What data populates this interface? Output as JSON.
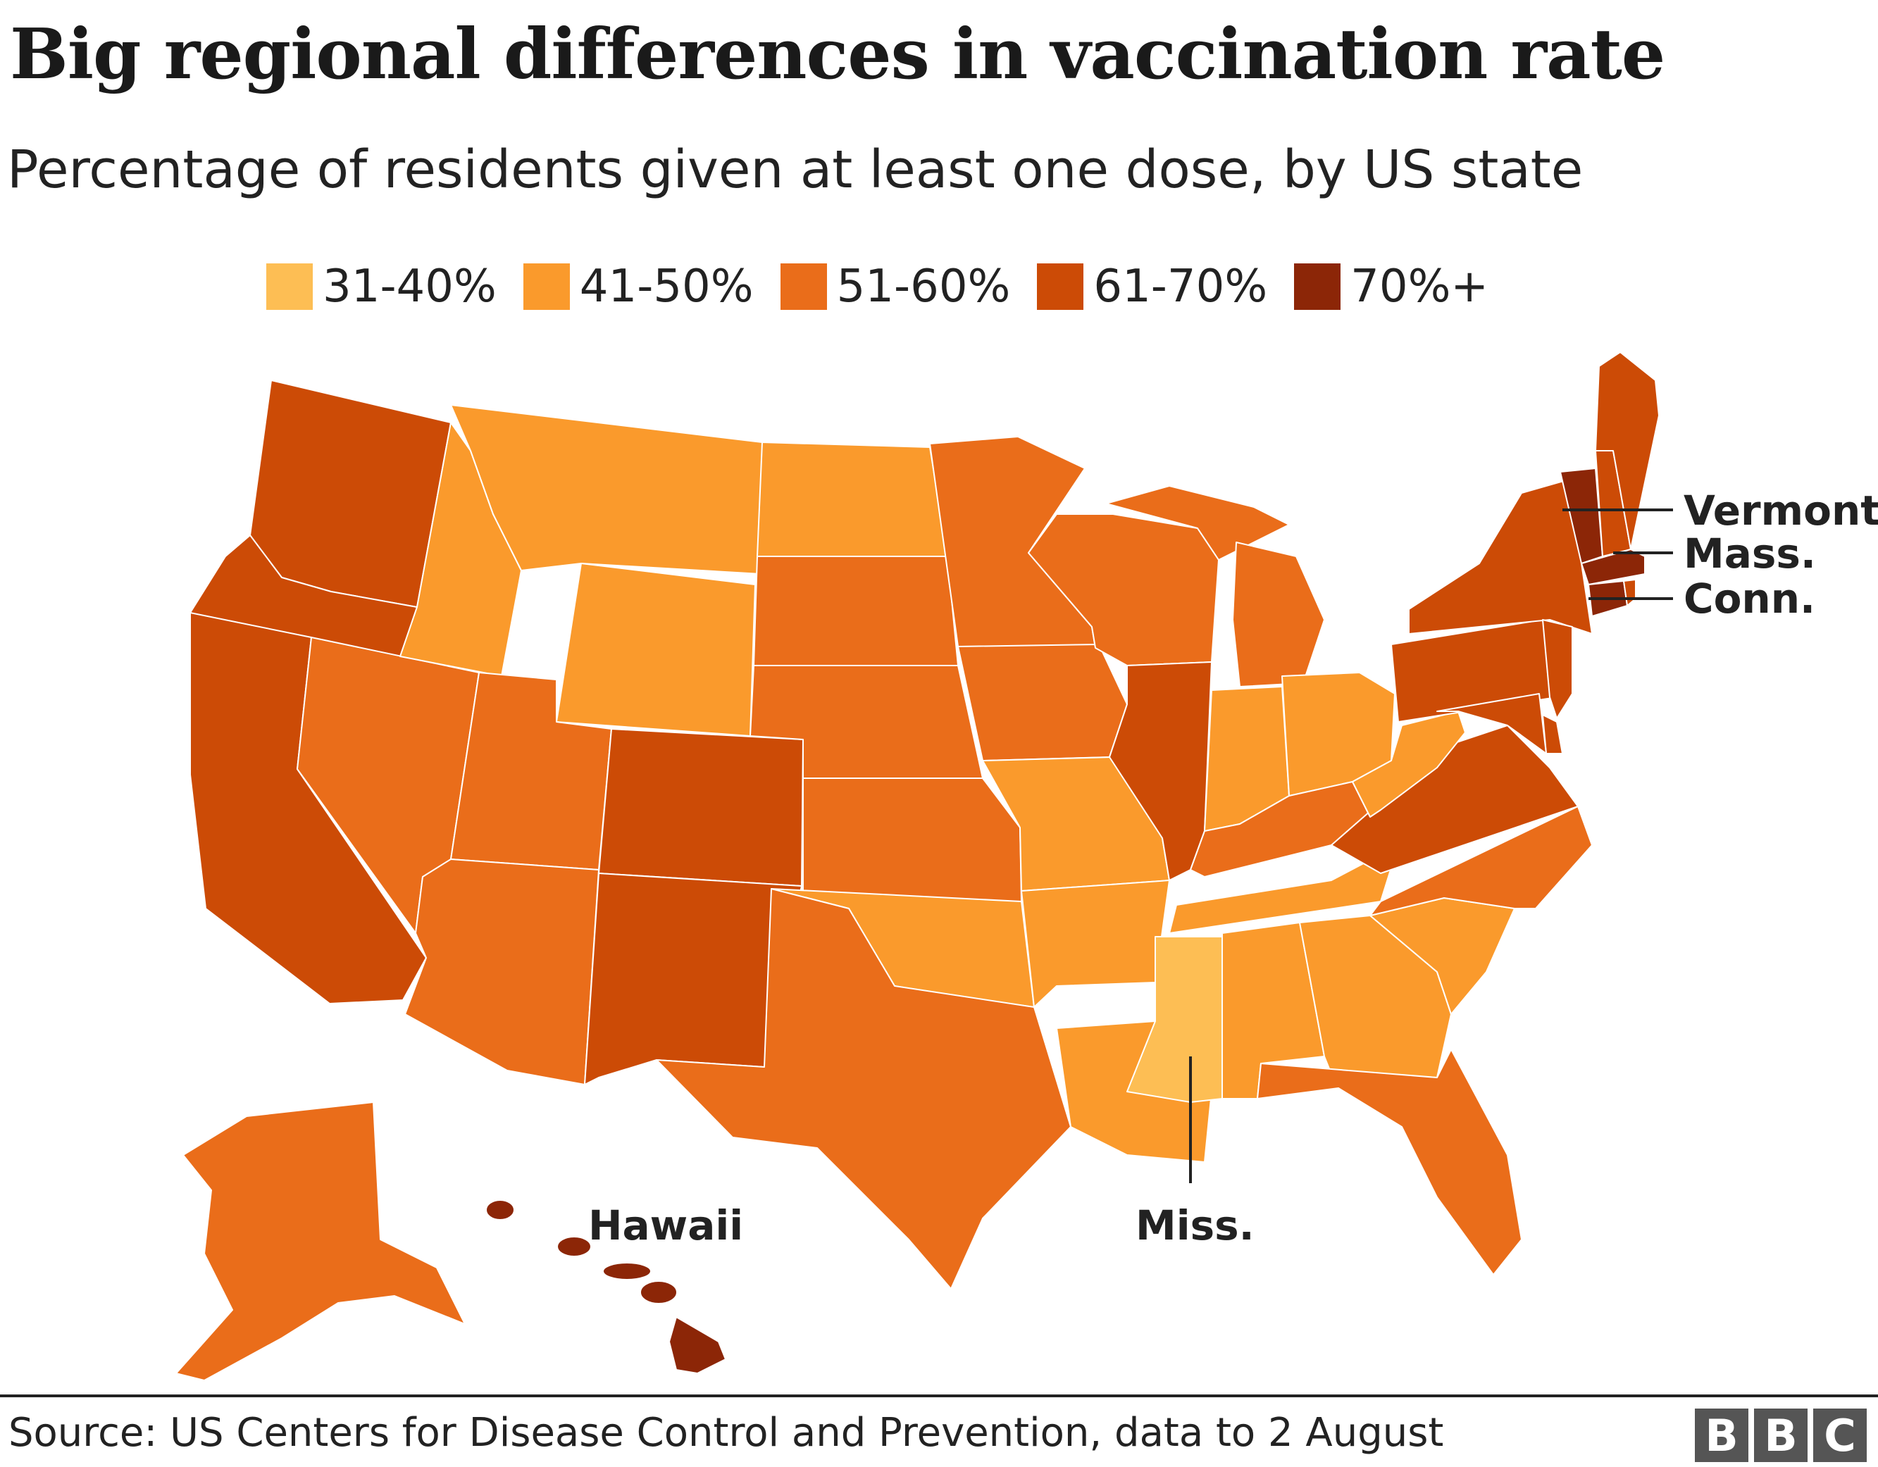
{
  "title": "Big regional differences in vaccination rate",
  "subtitle": "Percentage of residents given at least one dose, by US state",
  "legend": [
    {
      "label": "31-40%",
      "color": "#fdbe54"
    },
    {
      "label": "41-50%",
      "color": "#fa9a2c"
    },
    {
      "label": "51-60%",
      "color": "#ea6d1a"
    },
    {
      "label": "61-70%",
      "color": "#cc4b06"
    },
    {
      "label": "70%+",
      "color": "#8c2607"
    }
  ],
  "annotations": {
    "vermont": "Vermont",
    "mass": "Mass.",
    "conn": "Conn.",
    "hawaii": "Hawaii",
    "miss": "Miss."
  },
  "state_bands": {
    "washington": "61-70%",
    "oregon": "61-70%",
    "california": "61-70%",
    "nevada": "51-60%",
    "idaho": "41-50%",
    "montana": "41-50%",
    "wyoming": "41-50%",
    "utah": "51-60%",
    "arizona": "51-60%",
    "colorado": "61-70%",
    "new-mexico": "61-70%",
    "north-dakota": "41-50%",
    "south-dakota": "51-60%",
    "nebraska": "51-60%",
    "kansas": "51-60%",
    "oklahoma": "41-50%",
    "texas": "51-60%",
    "minnesota": "51-60%",
    "iowa": "51-60%",
    "missouri": "41-50%",
    "arkansas": "41-50%",
    "louisiana": "41-50%",
    "wisconsin": "51-60%",
    "illinois": "61-70%",
    "michigan": "51-60%",
    "indiana": "41-50%",
    "ohio": "41-50%",
    "kentucky": "51-60%",
    "tennessee": "41-50%",
    "mississippi": "31-40%",
    "alabama": "41-50%",
    "georgia": "41-50%",
    "florida": "51-60%",
    "south-carolina": "41-50%",
    "north-carolina": "51-60%",
    "virginia": "61-70%",
    "west-virginia": "41-50%",
    "pennsylvania": "61-70%",
    "new-york": "61-70%",
    "vermont": "70%+",
    "new-hampshire": "61-70%",
    "maine": "61-70%",
    "massachusetts": "70%+",
    "connecticut": "70%+",
    "rhode-island": "61-70%",
    "new-jersey": "61-70%",
    "delaware": "61-70%",
    "maryland": "61-70%",
    "alaska": "51-60%",
    "hawaii": "70%+"
  },
  "source": "Source: US Centers for Disease Control and Prevention, data to 2 August",
  "logo": [
    "B",
    "B",
    "C"
  ]
}
